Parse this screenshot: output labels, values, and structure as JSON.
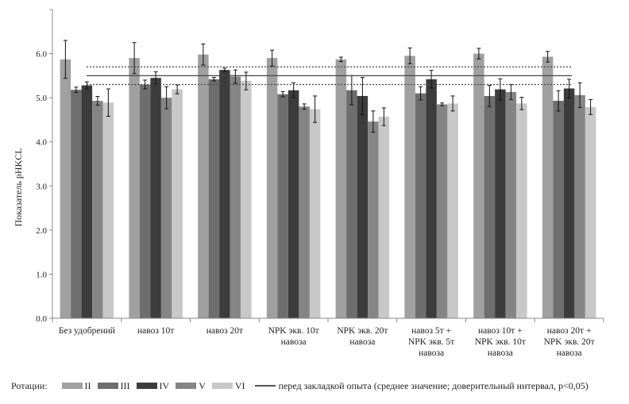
{
  "chart_data": {
    "type": "bar",
    "ylabel": "Показатель pHKCL",
    "ylim": [
      0,
      7
    ],
    "yticks": [
      "0.0",
      "1.0",
      "2.0",
      "3.0",
      "4.0",
      "5.0",
      "6.0"
    ],
    "categories": [
      [
        "Без удобрений"
      ],
      [
        "навоз 10т"
      ],
      [
        "навоз 20т"
      ],
      [
        "NPK экв. 10т",
        "навоза"
      ],
      [
        "NPK экв. 20т",
        "навоза"
      ],
      [
        "навоз 5т +",
        "NPK экв. 5т",
        "навоза"
      ],
      [
        "навоз 10т +",
        "NPK экв. 10т",
        "навоза"
      ],
      [
        "навоз 20т +",
        "NPK экв. 20т",
        "навоза"
      ]
    ],
    "series": [
      {
        "name": "II",
        "color": "#a0a0a0",
        "values": [
          5.87,
          5.9,
          5.98,
          5.9,
          5.87,
          5.95,
          6.0,
          5.93
        ],
        "errors": [
          0.43,
          0.35,
          0.24,
          0.18,
          0.05,
          0.18,
          0.12,
          0.12
        ]
      },
      {
        "name": "III",
        "color": "#6e6e6e",
        "values": [
          5.18,
          5.3,
          5.42,
          5.08,
          5.17,
          5.1,
          5.04,
          4.93
        ],
        "errors": [
          0.06,
          0.1,
          0.04,
          0.06,
          0.33,
          0.15,
          0.24,
          0.23
        ]
      },
      {
        "name": "IV",
        "color": "#3c3c3c",
        "values": [
          5.28,
          5.45,
          5.63,
          5.17,
          5.04,
          5.42,
          5.19,
          5.21
        ],
        "errors": [
          0.08,
          0.14,
          0.04,
          0.17,
          0.42,
          0.2,
          0.24,
          0.21
        ]
      },
      {
        "name": "V",
        "color": "#858585",
        "values": [
          4.93,
          5.0,
          5.48,
          4.8,
          4.46,
          4.85,
          5.13,
          5.06
        ],
        "errors": [
          0.1,
          0.25,
          0.15,
          0.06,
          0.24,
          0.03,
          0.17,
          0.28
        ]
      },
      {
        "name": "VI",
        "color": "#c8c8c8",
        "values": [
          4.89,
          5.19,
          5.38,
          4.74,
          4.57,
          4.87,
          4.87,
          4.79
        ],
        "errors": [
          0.31,
          0.1,
          0.2,
          0.3,
          0.2,
          0.17,
          0.14,
          0.17
        ]
      }
    ],
    "reference": {
      "mean": 5.5,
      "ci_low": 5.3,
      "ci_high": 5.7
    }
  },
  "legend": {
    "title": "Ротации:",
    "items": [
      "II",
      "III",
      "IV",
      "V",
      "VI"
    ],
    "line_label": "перед закладкой опыта (среднее значение; доверительный интервал, р<0,05)"
  }
}
